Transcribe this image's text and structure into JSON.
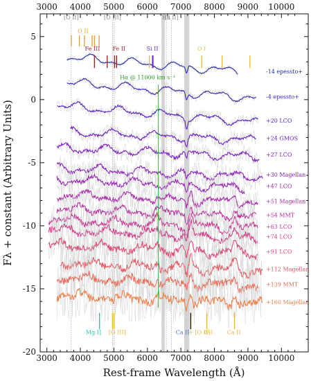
{
  "chart_data": {
    "type": "line",
    "xlabel": "Rest-frame Wavelength (Å)",
    "ylabel": "Fλ + constant (Arbitrary Units)",
    "xlim": [
      2800,
      10800
    ],
    "ylim": [
      -20,
      6.8
    ],
    "x_ticks_bottom": [
      "3000",
      "4000",
      "5000",
      "6000",
      "7000",
      "8000",
      "9000",
      "10000"
    ],
    "x_ticks_top": [
      "3000",
      "4000",
      "5000",
      "6000",
      "7000",
      "8000",
      "9000",
      "10000"
    ],
    "y_ticks": [
      "5",
      "0",
      "-5",
      "-10",
      "-15",
      "-20"
    ],
    "y_tick_values": [
      5,
      0,
      -5,
      -10,
      -15,
      -20
    ],
    "grid": false,
    "telluric_bands": [
      [
        6420,
        6520
      ],
      [
        7100,
        7250
      ]
    ],
    "reference_lines": [
      {
        "label": "[O II]",
        "x": [
          3727
        ],
        "color": "#aaaaaa"
      },
      {
        "label": "[O III]",
        "x": [
          4959,
          5007
        ],
        "color": "#aaaaaa"
      },
      {
        "label": "Hα",
        "x": [
          6563
        ],
        "color": "#aaaaaa"
      },
      {
        "label": "[S II]",
        "x": [
          6716
        ],
        "color": "#aaaaaa"
      }
    ],
    "top_ids": [
      {
        "label": "O II",
        "color": "#e8a33a",
        "x": [
          3730,
          3970,
          4120,
          4350,
          4420,
          4560
        ],
        "label_x": 4080,
        "label_y": 5.3
      },
      {
        "label": "Fe III",
        "color": "#9a2a2a",
        "x": [
          4420,
          4800
        ],
        "label_x": 4360,
        "label_y": 3.9
      },
      {
        "label": "Fe II",
        "color": "#9a2a2a",
        "x": [
          5020,
          5080
        ],
        "label_x": 5150,
        "label_y": 3.9
      },
      {
        "label": "Si II",
        "color": "#6b2bc8",
        "x": [
          6160
        ],
        "label_x": 6150,
        "label_y": 3.9
      },
      {
        "label": "O I",
        "color": "#e8c13a",
        "x": [
          6060,
          7620,
          8230,
          9060
        ],
        "label_x": 7620,
        "label_y": 3.9
      }
    ],
    "annotation": {
      "label": "Hα @ 11000 km s⁻¹",
      "color": "#2a9d2a",
      "x": 6325,
      "label_x": 6000,
      "label_y": 1.6
    },
    "bottom_ids": [
      {
        "label": "Mg I]",
        "color": "#29c0b0",
        "x": [
          4571
        ],
        "label_x": 4390
      },
      {
        "label": "[O III]",
        "color": "#e8b73a",
        "x": [
          4959,
          5007
        ],
        "label_x": 5100
      },
      {
        "label": "Ca II",
        "color": "#4a6fd8",
        "x": [],
        "label_x": 7050
      },
      {
        "label": "+ [O II]",
        "color": "#e8b73a",
        "x": [
          7300
        ],
        "label_x": 7550
      },
      {
        "label": "O I",
        "color": "#e8b73a",
        "x": [
          7774
        ],
        "label_x": 7820
      },
      {
        "label": "Ca II",
        "color": "#e8b73a",
        "x": [
          8600
        ],
        "label_x": 8580
      },
      {
        "label": "",
        "color": "#222222",
        "x": [
          7290
        ],
        "label_x": 7290
      }
    ],
    "series": [
      {
        "name": "-14 epessto+",
        "offset": 2.3,
        "start": 3600,
        "end": 8700,
        "color": "#1f2aa8"
      },
      {
        "name": "-4 epessto+",
        "offset": 0.3,
        "start": 3600,
        "end": 9250,
        "color": "#3628b0"
      },
      {
        "name": "+20 LCO",
        "offset": -1.6,
        "start": 3300,
        "end": 9300,
        "color": "#5824c0"
      },
      {
        "name": "+24 GMOS",
        "offset": -3.0,
        "start": 3700,
        "end": 9250,
        "color": "#6d22c2"
      },
      {
        "name": "+27 LCO",
        "offset": -4.3,
        "start": 3300,
        "end": 9350,
        "color": "#7d22c0"
      },
      {
        "name": "+30 Magellan",
        "offset": -5.9,
        "start": 3300,
        "end": 9450,
        "color": "#8a22bb"
      },
      {
        "name": "+47 LCO",
        "offset": -6.8,
        "start": 3300,
        "end": 8900,
        "color": "#9826b5"
      },
      {
        "name": "+51 Magellan",
        "offset": -8.0,
        "start": 3300,
        "end": 9300,
        "color": "#a82aab"
      },
      {
        "name": "+54 MMT",
        "offset": -9.1,
        "start": 3300,
        "end": 9250,
        "color": "#b82e9f"
      },
      {
        "name": "+63 LCO",
        "offset": -10.0,
        "start": 3050,
        "end": 9300,
        "color": "#c63493"
      },
      {
        "name": "+74 LCO",
        "offset": -10.8,
        "start": 3050,
        "end": 9300,
        "color": "#d23c86"
      },
      {
        "name": "+91 LCO",
        "offset": -12.0,
        "start": 3050,
        "end": 9300,
        "color": "#dc4a72"
      },
      {
        "name": "+112 Magellan",
        "offset": -13.4,
        "start": 3400,
        "end": 9450,
        "color": "#e45a62"
      },
      {
        "name": "+139 MMT",
        "offset": -14.6,
        "start": 3300,
        "end": 9300,
        "color": "#ea6a55"
      },
      {
        "name": "+160 Magellan",
        "offset": -16.0,
        "start": 3300,
        "end": 9450,
        "color": "#f0804a"
      }
    ]
  }
}
